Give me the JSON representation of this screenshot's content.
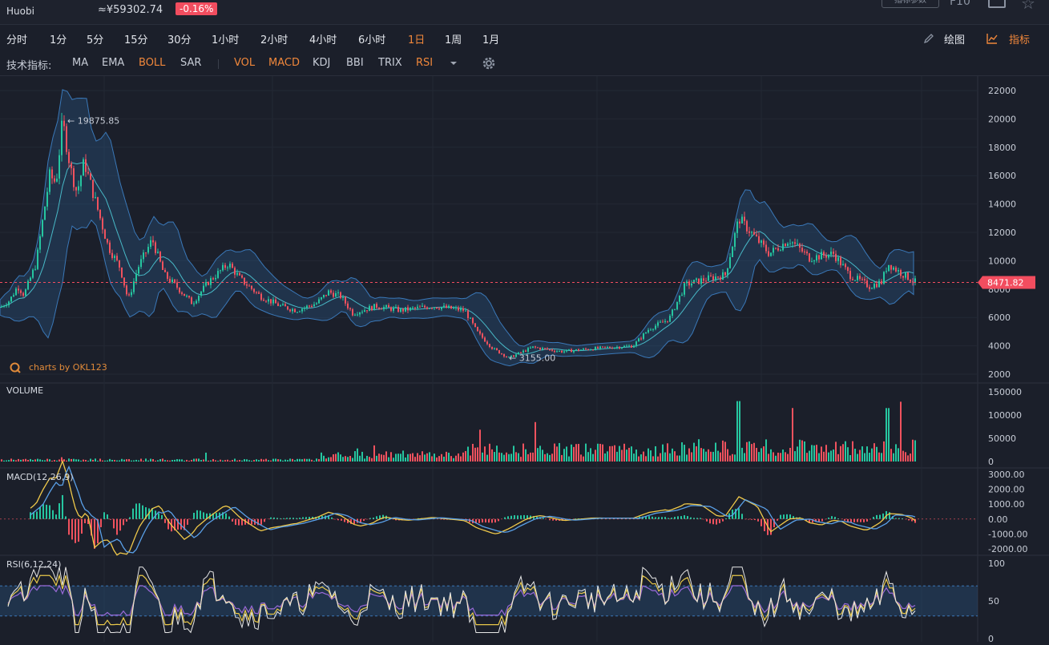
{
  "header": {
    "exchange": "Huobi",
    "price": "≈¥59302.74",
    "change": "-0.16%",
    "config_button": "指标参数",
    "f10": "F10"
  },
  "timeframes": [
    {
      "label": "分时",
      "active": false
    },
    {
      "label": "1分",
      "active": false
    },
    {
      "label": "5分",
      "active": false
    },
    {
      "label": "15分",
      "active": false
    },
    {
      "label": "30分",
      "active": false
    },
    {
      "label": "1小时",
      "active": false
    },
    {
      "label": "2小时",
      "active": false
    },
    {
      "label": "4小时",
      "active": false
    },
    {
      "label": "6小时",
      "active": false
    },
    {
      "label": "1日",
      "active": true
    },
    {
      "label": "1周",
      "active": false
    },
    {
      "label": "1月",
      "active": false
    }
  ],
  "toolbar": {
    "draw_label": "绘图",
    "indicator_label": "指标"
  },
  "indicators": {
    "label": "技术指标:",
    "main": [
      {
        "label": "MA",
        "on": false
      },
      {
        "label": "EMA",
        "on": false
      },
      {
        "label": "BOLL",
        "on": true
      },
      {
        "label": "SAR",
        "on": false
      }
    ],
    "sub": [
      {
        "label": "VOL",
        "on": true
      },
      {
        "label": "MACD",
        "on": true
      },
      {
        "label": "KDJ",
        "on": false
      },
      {
        "label": "BBI",
        "on": false
      },
      {
        "label": "TRIX",
        "on": false
      },
      {
        "label": "RSI",
        "on": true
      }
    ],
    "more_icon": "caret-down-icon",
    "settings_icon": "gear-icon"
  },
  "panels": {
    "volume_label": "VOLUME",
    "macd_label": "MACD(12,26,9)",
    "rsi_label": "RSI(6,12,24)",
    "watermark": "charts by OKL123"
  },
  "colors": {
    "up": "#26c6a0",
    "down": "#f0525e",
    "accent": "#f0873b",
    "band": "#2a5a8a",
    "price_line": "#f24d5f",
    "macd_dif": "#f0c94a",
    "macd_dea": "#5aa0e8",
    "rsi1": "#e8e8e8",
    "rsi2": "#e8c84a",
    "rsi3": "#9a6ad8"
  },
  "chart_data": {
    "type": "candlestick",
    "price_axis": {
      "ticks": [
        "22000",
        "20000",
        "18000",
        "16000",
        "14000",
        "12000",
        "10000",
        "8000",
        "6000",
        "4000",
        "2000"
      ],
      "range": [
        2000,
        22000
      ]
    },
    "current_price": "8471.82",
    "high_marker": "19875.85",
    "low_marker": "3155.00",
    "close_path": [
      [
        0,
        6700
      ],
      [
        12,
        7200
      ],
      [
        22,
        8200
      ],
      [
        30,
        7600
      ],
      [
        45,
        9800
      ],
      [
        55,
        13500
      ],
      [
        62,
        16000
      ],
      [
        70,
        15500
      ],
      [
        78,
        19875.85
      ],
      [
        88,
        16500
      ],
      [
        96,
        14800
      ],
      [
        105,
        17000
      ],
      [
        115,
        15000
      ],
      [
        125,
        13000
      ],
      [
        135,
        11000
      ],
      [
        150,
        9500
      ],
      [
        160,
        7200
      ],
      [
        172,
        9500
      ],
      [
        190,
        11500
      ],
      [
        205,
        9000
      ],
      [
        220,
        8200
      ],
      [
        240,
        7000
      ],
      [
        260,
        8500
      ],
      [
        285,
        9800
      ],
      [
        300,
        8700
      ],
      [
        325,
        7500
      ],
      [
        350,
        6800
      ],
      [
        370,
        6500
      ],
      [
        395,
        7000
      ],
      [
        410,
        7800
      ],
      [
        425,
        7500
      ],
      [
        440,
        6300
      ],
      [
        470,
        6800
      ],
      [
        500,
        6500
      ],
      [
        540,
        6800
      ],
      [
        580,
        6500
      ],
      [
        595,
        5000
      ],
      [
        615,
        3800
      ],
      [
        635,
        3155
      ],
      [
        665,
        3900
      ],
      [
        700,
        3600
      ],
      [
        740,
        3800
      ],
      [
        790,
        4000
      ],
      [
        810,
        5200
      ],
      [
        835,
        5900
      ],
      [
        855,
        8300
      ],
      [
        880,
        8700
      ],
      [
        905,
        9000
      ],
      [
        922,
        13000
      ],
      [
        940,
        11800
      ],
      [
        960,
        10500
      ],
      [
        985,
        11500
      ],
      [
        1010,
        10200
      ],
      [
        1040,
        10500
      ],
      [
        1060,
        9000
      ],
      [
        1085,
        8200
      ],
      [
        1100,
        8500
      ],
      [
        1108,
        9800
      ],
      [
        1125,
        9100
      ],
      [
        1143,
        8471.82
      ]
    ],
    "volume_axis": {
      "ticks": [
        "150000",
        "100000",
        "50000",
        "0"
      ],
      "max": 150000
    },
    "macd_axis": {
      "ticks": [
        "3000.00",
        "2000.00",
        "1000.00",
        "0.00",
        "-1000.00",
        "-2000.00"
      ],
      "range": [
        -2000,
        3000
      ]
    },
    "rsi_axis": {
      "ticks": [
        "100",
        "50",
        "0"
      ],
      "band": [
        30,
        70
      ]
    }
  }
}
